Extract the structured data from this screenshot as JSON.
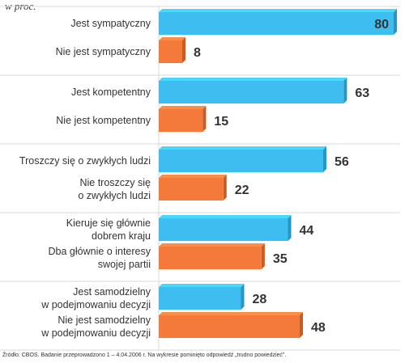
{
  "chart_data": {
    "type": "bar",
    "orientation": "horizontal",
    "unit_label": "w proc.",
    "xlim": [
      0,
      80
    ],
    "colors": {
      "positive": "#3dbdf0",
      "negative": "#f47a3c"
    },
    "categories": [
      [
        "Jest sympatyczny"
      ],
      [
        "Nie jest sympatyczny"
      ],
      [
        "Jest kompetentny"
      ],
      [
        "Nie jest kompetentny"
      ],
      [
        "Troszczy się o zwykłych ludzi"
      ],
      [
        "Nie troszczy się",
        "o zwykłych ludzi"
      ],
      [
        "Kieruje się głównie",
        "dobrem kraju"
      ],
      [
        "Dba głównie o interesy",
        "swojej partii"
      ],
      [
        "Jest samodzielny",
        "w podejmowaniu decyzji"
      ],
      [
        "Nie jest samodzielny",
        "w podejmowaniu decyzji"
      ]
    ],
    "values": [
      80,
      8,
      63,
      15,
      56,
      22,
      44,
      35,
      28,
      48
    ],
    "polarity": [
      "positive",
      "negative",
      "positive",
      "negative",
      "positive",
      "negative",
      "positive",
      "negative",
      "positive",
      "negative"
    ],
    "source": "Źródło: CBOS. Badanie przeprowadzono 1 – 4.04.2006 r. Na wykresie pominięto odpowiedź „trudno powiedzieć\"."
  }
}
